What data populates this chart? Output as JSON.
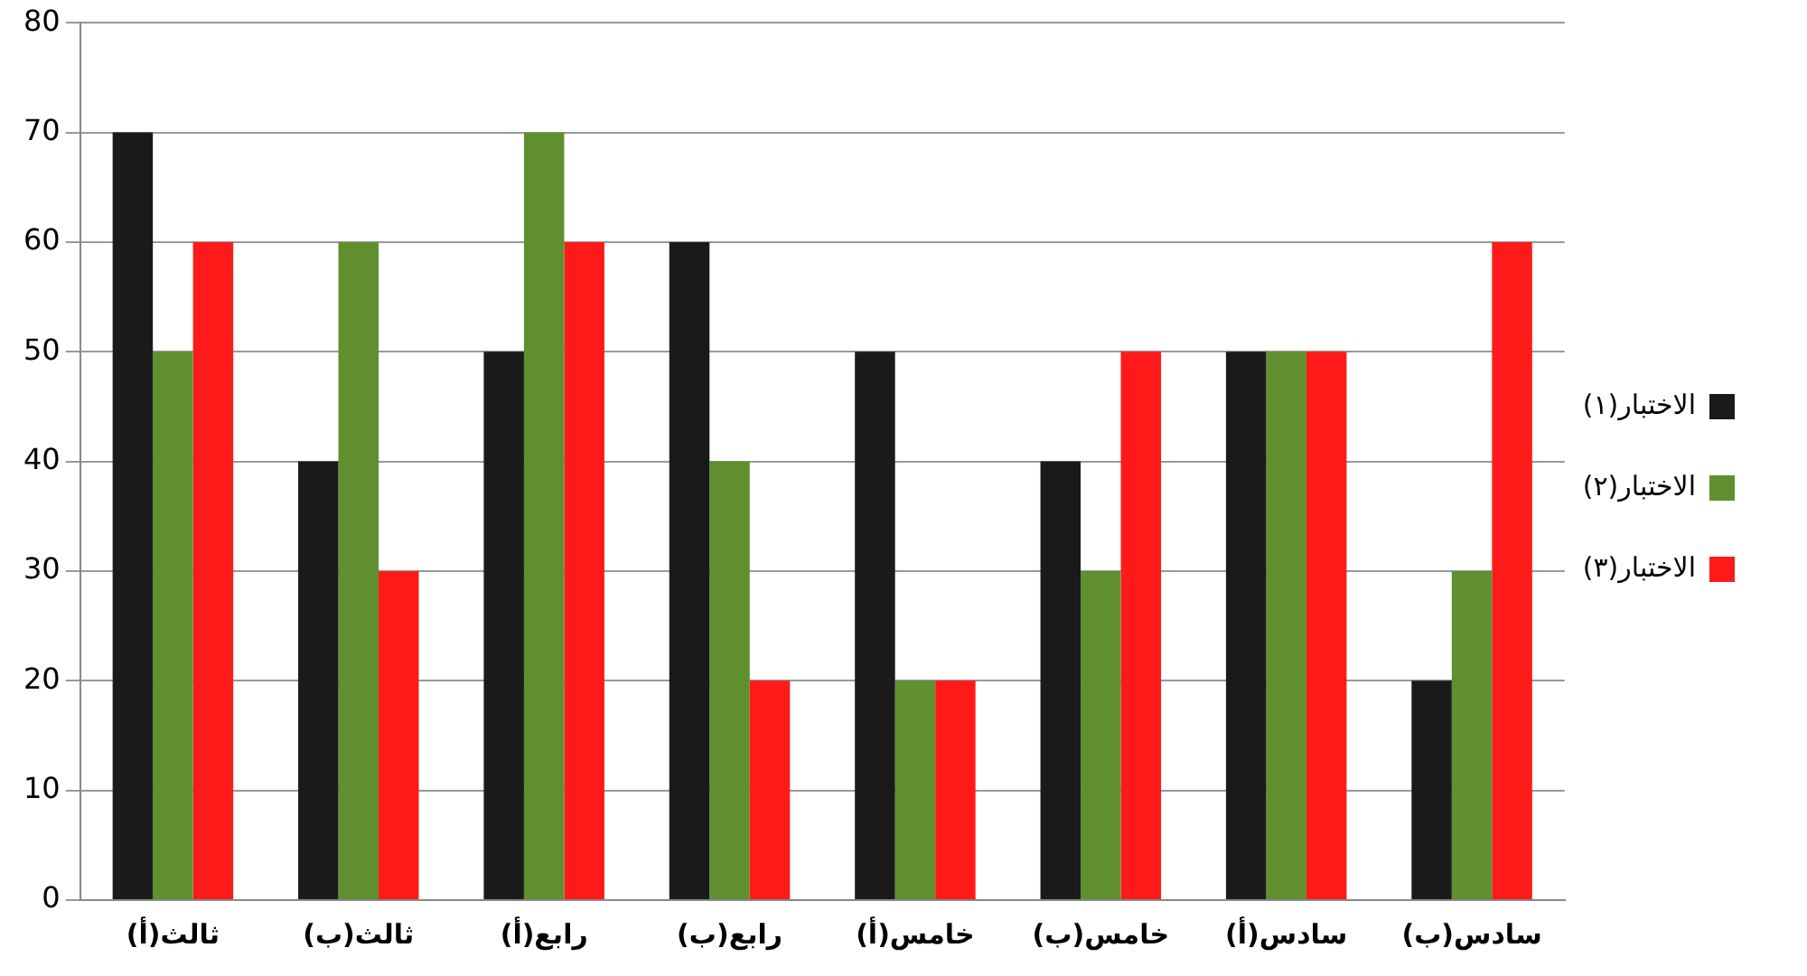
{
  "chart_data": {
    "type": "bar",
    "categories": [
      "ثالث(أ)",
      "ثالث(ب)",
      "رابع(أ)",
      "رابع(ب)",
      "خامس(أ)",
      "خامس(ب)",
      "سادس(أ)",
      "سادس(ب)"
    ],
    "series": [
      {
        "name": "الاختبار(١)",
        "color": "#1a1a1a",
        "values": [
          70,
          40,
          50,
          60,
          50,
          40,
          50,
          20
        ]
      },
      {
        "name": "الاختبار(٢)",
        "color": "#5f8f2f",
        "values": [
          50,
          60,
          70,
          40,
          20,
          30,
          50,
          30
        ]
      },
      {
        "name": "الاختبار(٣)",
        "color": "#ff1a1a",
        "values": [
          60,
          30,
          60,
          20,
          20,
          50,
          50,
          60
        ]
      }
    ],
    "ylim": [
      0,
      80
    ],
    "yticks": [
      0,
      10,
      20,
      30,
      40,
      50,
      60,
      70,
      80
    ],
    "grid": "y",
    "legend": "right"
  }
}
